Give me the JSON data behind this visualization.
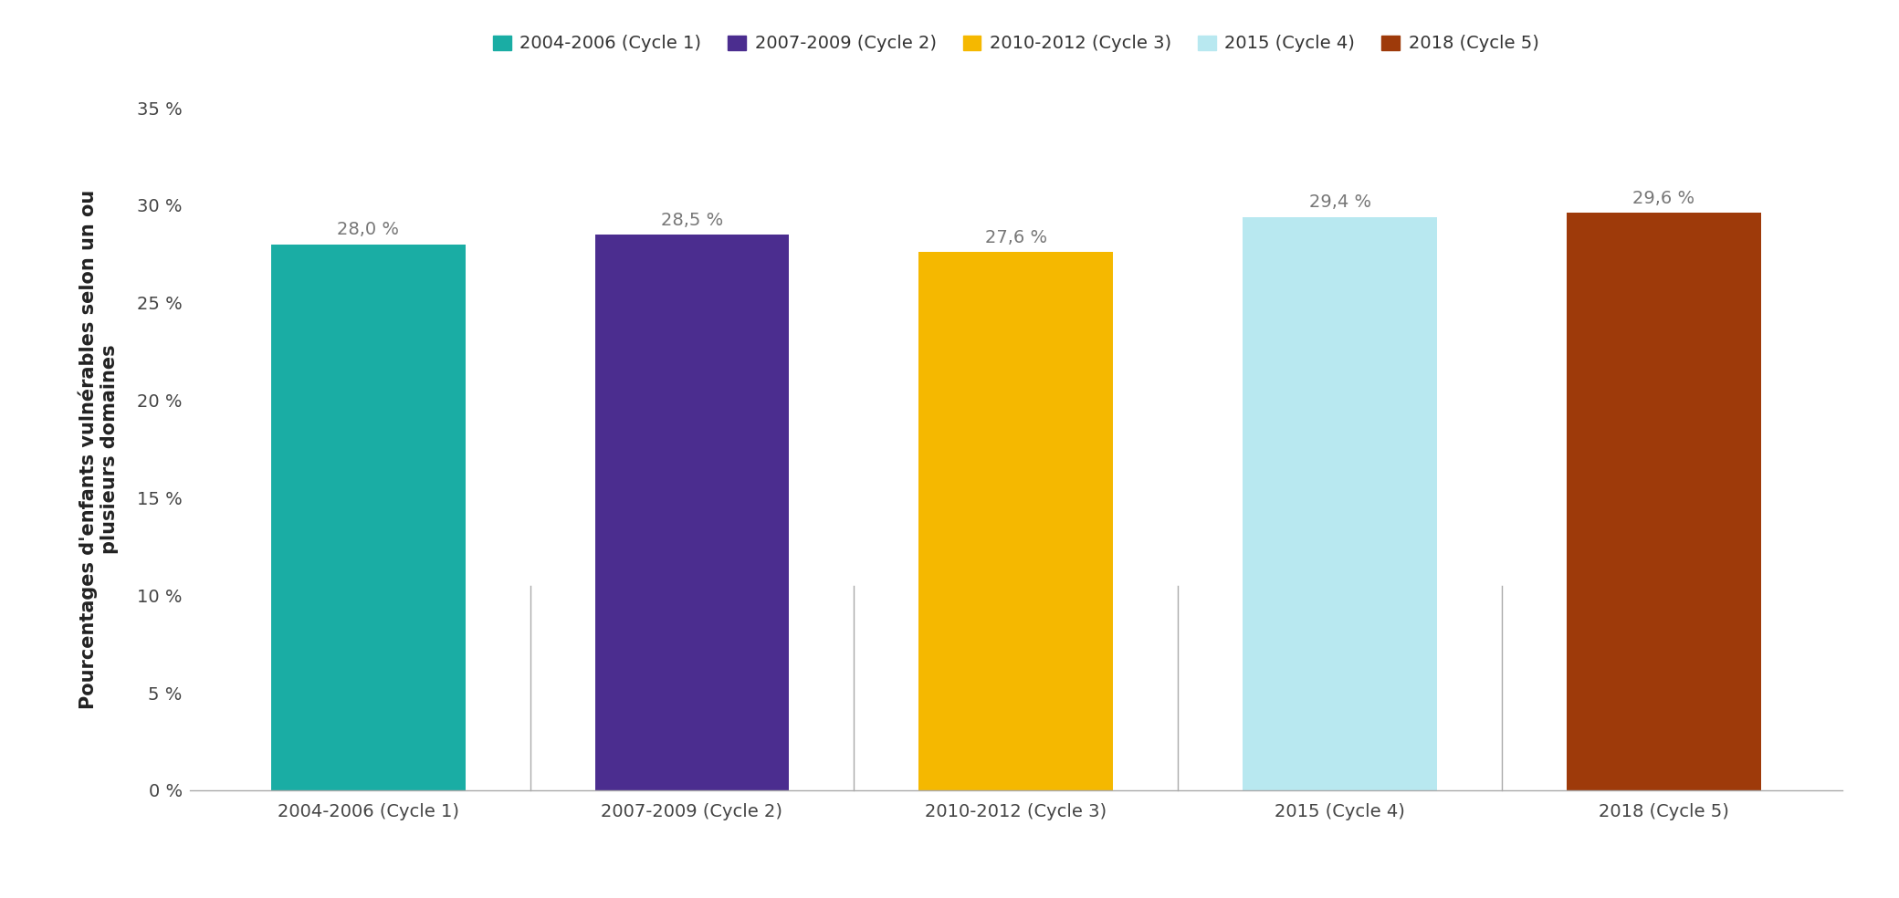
{
  "categories": [
    "2004-2006 (Cycle 1)",
    "2007-2009 (Cycle 2)",
    "2010-2012 (Cycle 3)",
    "2015 (Cycle 4)",
    "2018 (Cycle 5)"
  ],
  "values": [
    28.0,
    28.5,
    27.6,
    29.4,
    29.6
  ],
  "bar_colors": [
    "#1aada4",
    "#4b2d8f",
    "#f5b800",
    "#b8e8f0",
    "#9e3a0a"
  ],
  "value_labels": [
    "28,0 %",
    "28,5 %",
    "27,6 %",
    "29,4 %",
    "29,6 %"
  ],
  "ylabel": "Pourcentages d'enfants vulnérables selon un ou\nplusieurs domaines",
  "ylim": [
    0,
    35
  ],
  "yticks": [
    0,
    5,
    10,
    15,
    20,
    25,
    30,
    35
  ],
  "ytick_labels": [
    "0 %",
    "5 %",
    "10 %",
    "15 %",
    "20 %",
    "25 %",
    "30 %",
    "35 %"
  ],
  "legend_labels": [
    "2004-2006 (Cycle 1)",
    "2007-2009 (Cycle 2)",
    "2010-2012 (Cycle 3)",
    "2015 (Cycle 4)",
    "2018 (Cycle 5)"
  ],
  "legend_colors": [
    "#1aada4",
    "#4b2d8f",
    "#f5b800",
    "#b8e8f0",
    "#9e3a0a"
  ],
  "background_color": "#ffffff",
  "bar_width": 0.6,
  "tick_fontsize": 14,
  "ylabel_fontsize": 15,
  "legend_fontsize": 14,
  "value_fontsize": 14
}
